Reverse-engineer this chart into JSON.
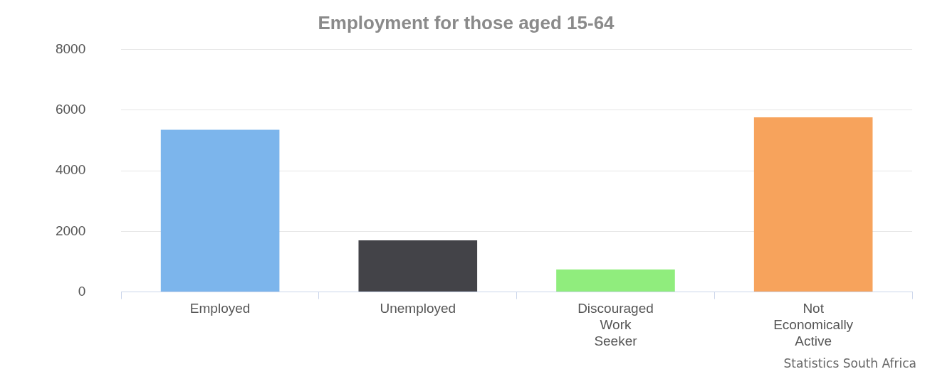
{
  "chart_data": {
    "type": "bar",
    "title": "Employment for those aged 15-64",
    "categories": [
      "Employed",
      "Unemployed",
      "Discouraged Work Seeker",
      "Not Economically Active"
    ],
    "values": [
      5350,
      1700,
      740,
      5760
    ],
    "colors": [
      "#7cb5ec",
      "#434348",
      "#90ed7d",
      "#f7a35c"
    ],
    "ylim": [
      0,
      8000
    ],
    "yticks": [
      0,
      2000,
      4000,
      6000,
      8000
    ],
    "grid": "y",
    "legend": false,
    "annotations": [
      "Statistics South Africa"
    ]
  }
}
